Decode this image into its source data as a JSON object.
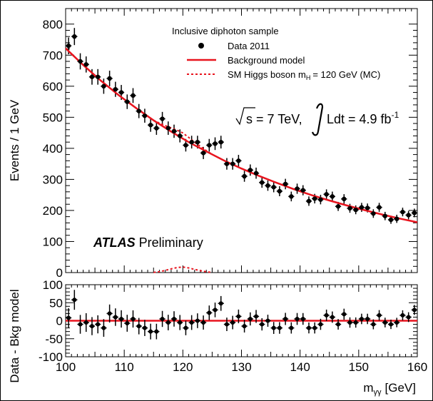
{
  "chart_data": [
    {
      "type": "scatter",
      "panel": "main",
      "ylabel": "Events / 1 GeV",
      "xlim": [
        100,
        160
      ],
      "ylim": [
        0,
        850
      ],
      "x_ticks": [
        100,
        110,
        120,
        130,
        140,
        150,
        160
      ],
      "y_ticks": [
        0,
        100,
        200,
        300,
        400,
        500,
        600,
        700,
        800
      ],
      "legend": {
        "header": "Inclusive diphoton sample",
        "entries": [
          "Data 2011",
          "Background model",
          "SM Higgs boson m",
          "= 120 GeV (MC)"
        ],
        "higgs_subscript": "H",
        "placement": "top-right"
      },
      "energy_label": "s = 7 TeV,",
      "lumi_label": "Ldt = 4.9 fb",
      "lumi_exponent": "-1",
      "atlas_bold": "ATLAS",
      "atlas_suffix": "Preliminary",
      "series": [
        {
          "name": "Data 2011",
          "x": [
            100.5,
            101.5,
            102.5,
            103.5,
            104.5,
            105.5,
            106.5,
            107.5,
            108.5,
            109.5,
            110.5,
            111.5,
            112.5,
            113.5,
            114.5,
            115.5,
            116.5,
            117.5,
            118.5,
            119.5,
            120.5,
            121.5,
            122.5,
            123.5,
            124.5,
            125.5,
            126.5,
            127.5,
            128.5,
            129.5,
            130.5,
            131.5,
            132.5,
            133.5,
            134.5,
            135.5,
            136.5,
            137.5,
            138.5,
            139.5,
            140.5,
            141.5,
            142.5,
            143.5,
            144.5,
            145.5,
            146.5,
            147.5,
            148.5,
            149.5,
            150.5,
            151.5,
            152.5,
            153.5,
            154.5,
            155.5,
            156.5,
            157.5,
            158.5,
            159.5
          ],
          "y": [
            730,
            760,
            680,
            670,
            630,
            630,
            600,
            625,
            590,
            580,
            550,
            570,
            520,
            505,
            475,
            465,
            495,
            465,
            455,
            440,
            410,
            420,
            420,
            385,
            410,
            415,
            420,
            350,
            350,
            360,
            310,
            330,
            320,
            290,
            280,
            275,
            262,
            285,
            245,
            270,
            265,
            230,
            238,
            235,
            252,
            245,
            213,
            237,
            207,
            202,
            210,
            208,
            190,
            210,
            182,
            170,
            173,
            195,
            185,
            192
          ]
        },
        {
          "name": "Background model",
          "x": [
            100,
            103,
            106,
            109,
            112,
            115,
            118,
            121,
            124,
            127,
            130,
            133,
            136,
            139,
            142,
            145,
            148,
            151,
            154,
            157,
            160
          ],
          "y": [
            722,
            668,
            618,
            572,
            530,
            490,
            454,
            420,
            390,
            361,
            335,
            311,
            289,
            268,
            249,
            232,
            216,
            201,
            187,
            174,
            162
          ]
        }
      ],
      "higgs_signal": {
        "name": "SM Higgs boson m_H = 120 GeV (MC)",
        "x": [
          115,
          116,
          117,
          118,
          119,
          120,
          121,
          122,
          123,
          124,
          125
        ],
        "y": [
          0.5,
          3,
          7,
          12,
          16,
          18,
          15,
          10,
          6,
          2.5,
          0.5
        ]
      }
    },
    {
      "type": "scatter",
      "panel": "residual",
      "xlabel": "m",
      "xlabel_subscript": "γγ",
      "xlabel_unit": "[GeV]",
      "ylabel": "Data - Bkg model",
      "xlim": [
        100,
        160
      ],
      "ylim": [
        -100,
        100
      ],
      "x_ticks": [
        100,
        110,
        120,
        130,
        140,
        150,
        160
      ],
      "y_ticks": [
        -100,
        -50,
        0,
        50,
        100
      ],
      "series": [
        {
          "name": "Data - Bkg model",
          "x": [
            100.5,
            101.5,
            102.5,
            103.5,
            104.5,
            105.5,
            106.5,
            107.5,
            108.5,
            109.5,
            110.5,
            111.5,
            112.5,
            113.5,
            114.5,
            115.5,
            116.5,
            117.5,
            118.5,
            119.5,
            120.5,
            121.5,
            122.5,
            123.5,
            124.5,
            125.5,
            126.5,
            127.5,
            128.5,
            129.5,
            130.5,
            131.5,
            132.5,
            133.5,
            134.5,
            135.5,
            136.5,
            137.5,
            138.5,
            139.5,
            140.5,
            141.5,
            142.5,
            143.5,
            144.5,
            145.5,
            146.5,
            147.5,
            148.5,
            149.5,
            150.5,
            151.5,
            152.5,
            153.5,
            154.5,
            155.5,
            156.5,
            157.5,
            158.5,
            159.5
          ],
          "y": [
            8,
            58,
            -10,
            -5,
            -15,
            -10,
            -20,
            20,
            10,
            5,
            -7,
            5,
            -15,
            -20,
            -30,
            -30,
            5,
            -5,
            5,
            -5,
            -20,
            -5,
            0,
            -5,
            22,
            30,
            48,
            -10,
            -5,
            12,
            -15,
            5,
            12,
            -10,
            0,
            -20,
            -20,
            5,
            -20,
            5,
            5,
            -20,
            -20,
            -10,
            15,
            10,
            -10,
            18,
            -5,
            -5,
            5,
            5,
            -10,
            15,
            -5,
            -10,
            -5,
            15,
            10,
            30
          ]
        },
        {
          "name": "Background model",
          "x": [
            100,
            160
          ],
          "y": [
            0,
            0
          ]
        }
      ]
    }
  ]
}
